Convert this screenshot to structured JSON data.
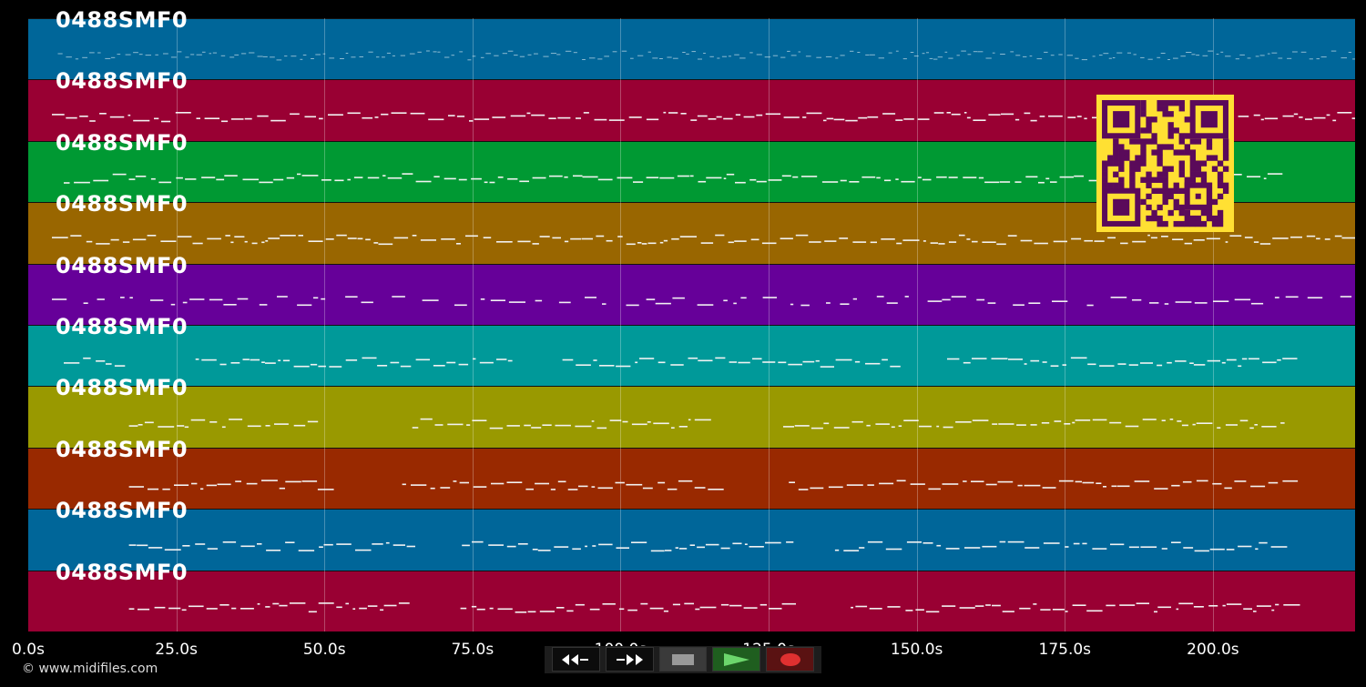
{
  "tracks": [
    {
      "label": "0488SMF0",
      "color": "#006699"
    },
    {
      "label": "0488SMF0",
      "color": "#990033"
    },
    {
      "label": "0488SMF0",
      "color": "#009933"
    },
    {
      "label": "0488SMF0",
      "color": "#996600"
    },
    {
      "label": "0488SMF0",
      "color": "#660099"
    },
    {
      "label": "0488SMF0",
      "color": "#009999"
    },
    {
      "label": "0488SMF0",
      "color": "#999900"
    },
    {
      "label": "0488SMF0",
      "color": "#992900"
    },
    {
      "label": "0488SMF0",
      "color": "#006699"
    },
    {
      "label": "0488SMF0",
      "color": "#990033"
    }
  ],
  "axis": {
    "ticks": [
      "0.0s",
      "25.0s",
      "50.0s",
      "75.0s",
      "100.0s",
      "125.0s",
      "150.0s",
      "175.0s",
      "200.0s"
    ],
    "max_seconds": 224
  },
  "copyright": "© www.midifiles.com",
  "controls": [
    {
      "name": "rewind-button",
      "icon": "rewind-icon"
    },
    {
      "name": "fast-forward-button",
      "icon": "fast-forward-icon"
    },
    {
      "name": "stop-button",
      "icon": "stop-icon"
    },
    {
      "name": "play-button",
      "icon": "play-icon"
    },
    {
      "name": "record-button",
      "icon": "record-icon"
    }
  ],
  "colors": {
    "background": "#000000",
    "qr_fg": "#ffe033",
    "qr_bg": "#5a0a5a"
  }
}
